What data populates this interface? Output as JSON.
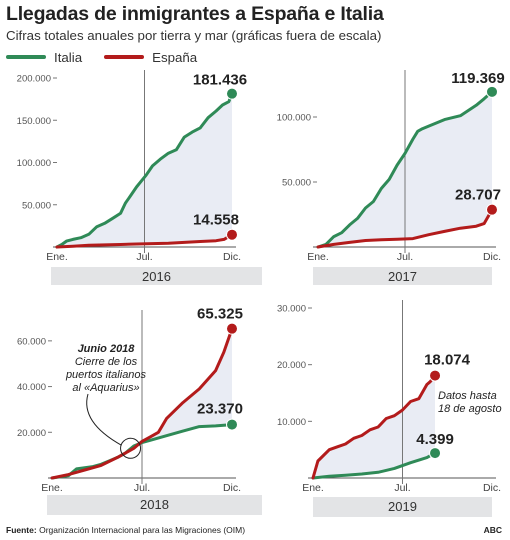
{
  "title": "Llegadas de inmigrantes a España e Italia",
  "subtitle": "Cifras totales anuales por tierra y mar (gráficas fuera de escala)",
  "legend": [
    {
      "label": "Italia",
      "color": "#2f8a57"
    },
    {
      "label": "España",
      "color": "#b31b1b"
    }
  ],
  "footer": {
    "source_label": "Fuente:",
    "source_text": "Organización Internacional para las Migraciones (OIM)",
    "brand": "ABC"
  },
  "colors": {
    "italia": "#2f8a57",
    "espana": "#b31b1b",
    "shade": "#e9ecf4",
    "year_bar": "#e3e4e6"
  },
  "chart_data": [
    {
      "type": "line",
      "year": "2016",
      "xlabel_ticks": [
        "Ene.",
        "Jul.",
        "Dic."
      ],
      "ylim": [
        0,
        200000
      ],
      "yticks": [
        "200.000",
        "150.000",
        "100.000",
        "50.000"
      ],
      "ytick_values": [
        200000,
        150000,
        100000,
        50000
      ],
      "series": [
        {
          "name": "Italia",
          "final_label": "181.436",
          "x": [
            0,
            0.3,
            0.6,
            1,
            1.5,
            2,
            2.5,
            3,
            3.5,
            4,
            4.3,
            4.6,
            5,
            5.3,
            5.6,
            6,
            6.5,
            7,
            7.5,
            8,
            8.5,
            9,
            9.5,
            10,
            10.4,
            10.8,
            11
          ],
          "values": [
            0,
            3000,
            7000,
            9000,
            11000,
            15000,
            24000,
            28000,
            34000,
            40000,
            52000,
            60000,
            71000,
            78000,
            85000,
            96000,
            104000,
            111000,
            115000,
            130000,
            136000,
            141000,
            153000,
            161000,
            168000,
            172000,
            181436
          ]
        },
        {
          "name": "España",
          "final_label": "14.558",
          "x": [
            0,
            1,
            2,
            3,
            4,
            5,
            6,
            7,
            8,
            9,
            10,
            10.5,
            11
          ],
          "values": [
            0,
            1000,
            2000,
            2500,
            3000,
            3500,
            4000,
            4500,
            5500,
            6500,
            7500,
            9000,
            14558
          ]
        }
      ]
    },
    {
      "type": "line",
      "year": "2017",
      "xlabel_ticks": [
        "Ene.",
        "Jul.",
        "Dic."
      ],
      "ylim": [
        0,
        130000
      ],
      "yticks": [
        "100.000",
        "50.000"
      ],
      "ytick_values": [
        100000,
        50000
      ],
      "series": [
        {
          "name": "Italia",
          "final_label": "119.369",
          "x": [
            0,
            0.5,
            1,
            1.5,
            2,
            2.5,
            3,
            3.5,
            4,
            4.5,
            5,
            5.5,
            6,
            6.3,
            6.6,
            7,
            8,
            9,
            10,
            10.5,
            11
          ],
          "values": [
            0,
            2000,
            8000,
            11000,
            17000,
            22000,
            30000,
            35000,
            45000,
            52000,
            63000,
            72000,
            83000,
            89000,
            91000,
            93000,
            98000,
            101000,
            109000,
            114000,
            119369
          ]
        },
        {
          "name": "España",
          "final_label": "28.707",
          "x": [
            0,
            1,
            2,
            3,
            4,
            5,
            6,
            7,
            8,
            9,
            10,
            10.5,
            11
          ],
          "values": [
            0,
            2000,
            3500,
            5000,
            5500,
            6000,
            6500,
            9500,
            12000,
            14500,
            16000,
            18000,
            28707
          ]
        }
      ]
    },
    {
      "type": "line",
      "year": "2018",
      "xlabel_ticks": [
        "Ene.",
        "Jul.",
        "Dic."
      ],
      "ylim": [
        0,
        70000
      ],
      "yticks": [
        "60.000",
        "40.000",
        "20.000"
      ],
      "ytick_values": [
        60000,
        40000,
        20000
      ],
      "annotation": {
        "title": "Junio 2018",
        "lines": [
          "Cierre de los",
          "puertos italianos",
          "al «Aquarius»"
        ]
      },
      "series": [
        {
          "name": "Italia",
          "final_label": "23.370",
          "x": [
            0,
            1,
            1.5,
            2,
            2.5,
            3,
            3.5,
            4,
            4.5,
            5,
            5.5,
            6,
            7,
            8,
            9,
            10,
            11
          ],
          "values": [
            0,
            1000,
            4000,
            4500,
            5000,
            6000,
            7500,
            9000,
            11000,
            14000,
            15500,
            16500,
            18500,
            20500,
            22500,
            22800,
            23370
          ]
        },
        {
          "name": "España",
          "final_label": "65.325",
          "x": [
            0,
            1,
            2,
            3,
            4,
            4.5,
            5,
            5.5,
            6,
            6.5,
            7,
            8,
            9,
            10,
            10.5,
            11
          ],
          "values": [
            0,
            1500,
            3500,
            5500,
            9000,
            11000,
            13000,
            16000,
            18000,
            20000,
            26000,
            33000,
            39000,
            47000,
            55000,
            65325
          ]
        }
      ]
    },
    {
      "type": "line",
      "year": "2019",
      "xlabel_ticks": [
        "Ene.",
        "Jul.",
        "Dic."
      ],
      "ylim": [
        0,
        30000
      ],
      "yticks": [
        "30.000",
        "20.000",
        "10.000"
      ],
      "ytick_values": [
        30000,
        20000,
        10000
      ],
      "annotation": {
        "lines": [
          "Datos hasta",
          "18 de agosto"
        ]
      },
      "series": [
        {
          "name": "Italia",
          "final_label": "4.399",
          "x": [
            0,
            1,
            2,
            3,
            4,
            5,
            6,
            7,
            7.5
          ],
          "values": [
            0,
            300,
            500,
            700,
            1000,
            1700,
            2700,
            3600,
            4399
          ]
        },
        {
          "name": "España",
          "final_label": "18.074",
          "x": [
            0,
            0.3,
            1,
            1.5,
            2,
            2.5,
            3,
            3.5,
            4,
            4.5,
            5,
            5.5,
            6,
            6.5,
            7,
            7.2,
            7.5
          ],
          "values": [
            0,
            3000,
            5000,
            5500,
            6000,
            7000,
            7500,
            8500,
            9000,
            10500,
            11000,
            12000,
            13500,
            14000,
            16500,
            17000,
            18074
          ]
        }
      ]
    }
  ]
}
